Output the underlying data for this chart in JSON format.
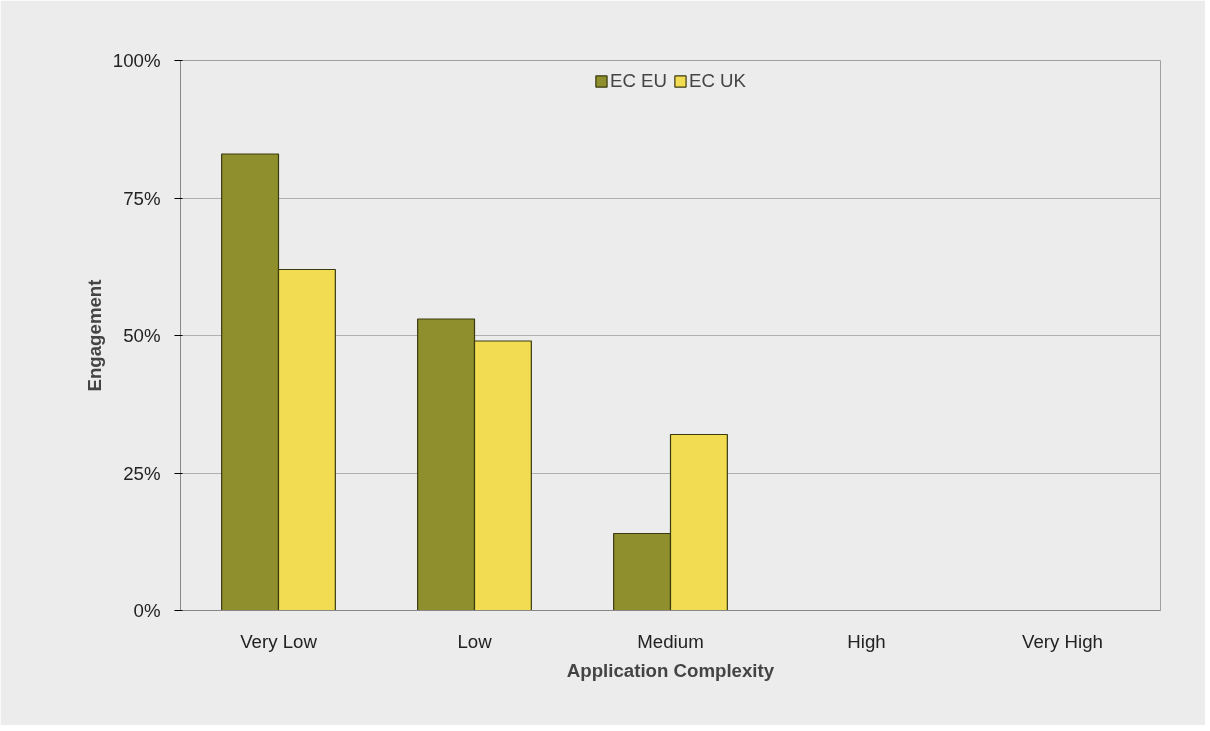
{
  "chart_data": {
    "type": "bar",
    "xlabel": "Application Complexity",
    "ylabel": "Engagement",
    "categories": [
      "Very Low",
      "Low",
      "Medium",
      "High",
      "Very High"
    ],
    "series": [
      {
        "name": "EC EU",
        "color": "#8f8f2e",
        "values": [
          83,
          53,
          14,
          null,
          null
        ]
      },
      {
        "name": "EC UK",
        "color": "#f2dc52",
        "values": [
          62,
          49,
          32,
          null,
          null
        ]
      }
    ],
    "ylim": [
      0,
      100
    ],
    "yticks": [
      {
        "value": 0,
        "label": "0%"
      },
      {
        "value": 25,
        "label": "25%"
      },
      {
        "value": 50,
        "label": "50%"
      },
      {
        "value": 75,
        "label": "75%"
      },
      {
        "value": 100,
        "label": "100%"
      }
    ],
    "grid": "y",
    "legend": "top"
  }
}
